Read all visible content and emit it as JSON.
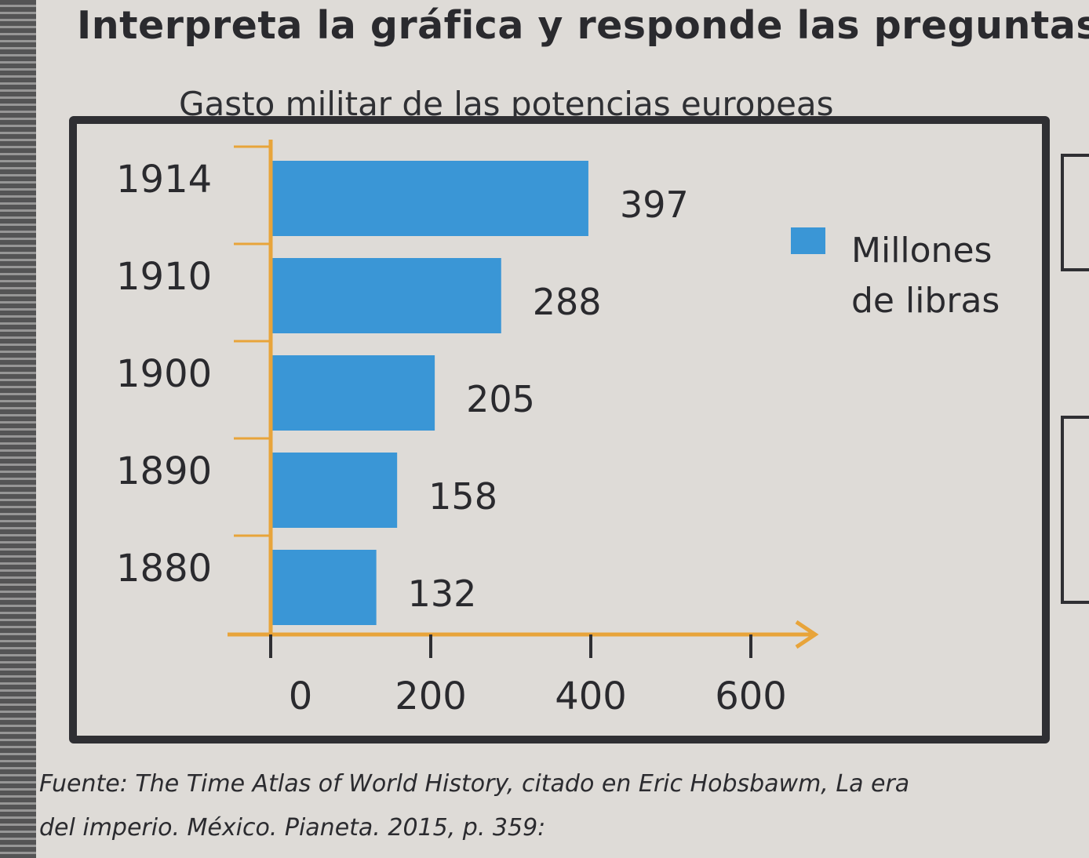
{
  "heading": "Interpreta la gráfica y responde las preguntas",
  "source_line1": "Fuente: The Time Atlas of World History, citado en Eric Hobsbawm, La era",
  "source_line2": "del imperio. México. Pianeta. 2015, p. 359:",
  "colors": {
    "bar": "#3a96d6",
    "axis": "#e8a43a",
    "frame": "#2f2f33",
    "text": "#2a2a2e"
  },
  "chart_data": {
    "type": "bar",
    "orientation": "horizontal",
    "title": "Gasto militar de las potencias europeas",
    "categories": [
      "1914",
      "1910",
      "1900",
      "1890",
      "1880"
    ],
    "series": [
      {
        "name": "Millones de libras",
        "values": [
          397,
          288,
          205,
          158,
          132
        ]
      }
    ],
    "data_labels": [
      "397",
      "288",
      "205",
      "158",
      "132"
    ],
    "x_ticks": [
      0,
      200,
      400,
      600
    ],
    "x_tick_labels": [
      "0",
      "200",
      "400",
      "600"
    ],
    "xlim": [
      0,
      650
    ],
    "legend": {
      "label_line1": "Millones",
      "label_line2": "de libras",
      "placement": "top-right"
    },
    "grid": false
  }
}
